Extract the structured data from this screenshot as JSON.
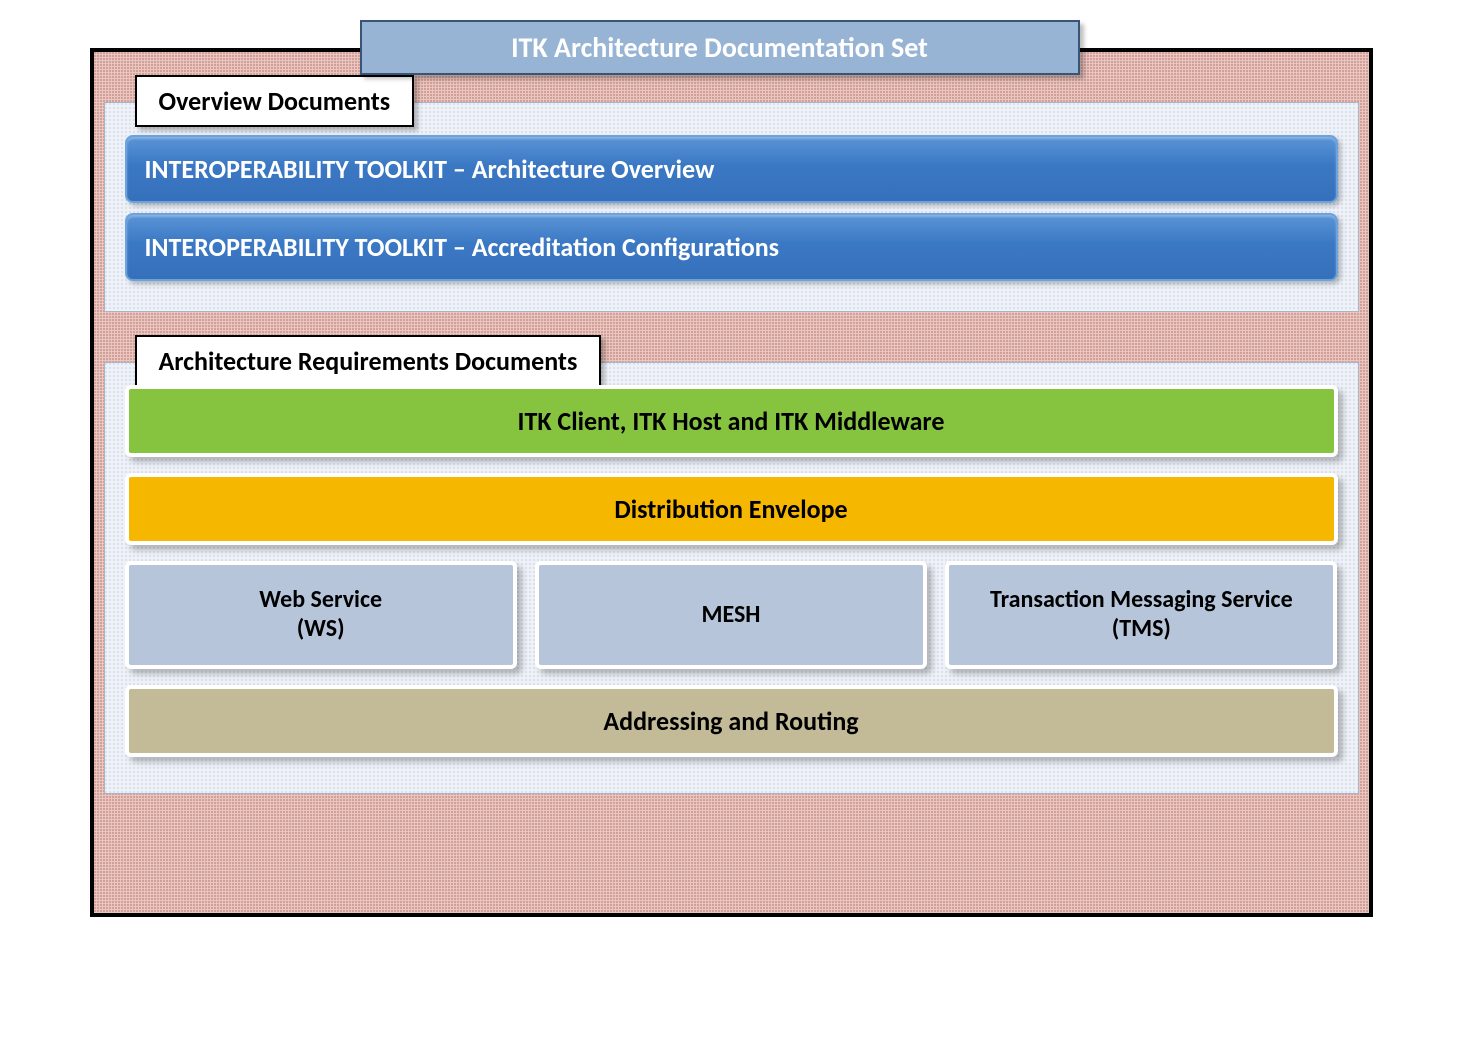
{
  "title": "ITK Architecture Documentation Set",
  "overview": {
    "label": "Overview Documents",
    "items": [
      "INTEROPERABILITY TOOLKIT – Architecture Overview",
      "INTEROPERABILITY TOOLKIT – Accreditation Configurations"
    ],
    "bar_gradient_top": "#5a94d6",
    "bar_gradient_bottom": "#3670bb",
    "bar_border": "#6aa3de",
    "bar_text_color": "#ffffff"
  },
  "requirements": {
    "label": "Architecture Requirements Documents",
    "row_green": {
      "text": "ITK Client, ITK Host and ITK Middleware",
      "bg": "#86c440"
    },
    "row_orange": {
      "text": "Distribution Envelope",
      "bg": "#f5b700"
    },
    "row_cols": {
      "bg": "#b6c5da",
      "items": [
        "Web Service\n(WS)",
        "MESH",
        "Transaction Messaging Service\n(TMS)"
      ]
    },
    "row_tan": {
      "text": "Addressing and Routing",
      "bg": "#c3bb98"
    }
  },
  "styling": {
    "title_bg": "#97b4d4",
    "title_border": "#3a5477",
    "title_text_color": "#ffffff",
    "outer_border": "#000000",
    "outer_pattern_color": "#b2675e",
    "outer_bg": "#e9c7c0",
    "section_border": "#a9b5c6",
    "section_bg": "#eef2f8",
    "section_pattern_color": "#a0afc8",
    "label_bg": "#ffffff",
    "label_border": "#000000",
    "bar_inner_border": "#ffffff",
    "font_family": "Calibri",
    "title_fontsize": 28,
    "label_fontsize": 26,
    "bar_fontsize": 26,
    "col_fontsize": 24
  }
}
